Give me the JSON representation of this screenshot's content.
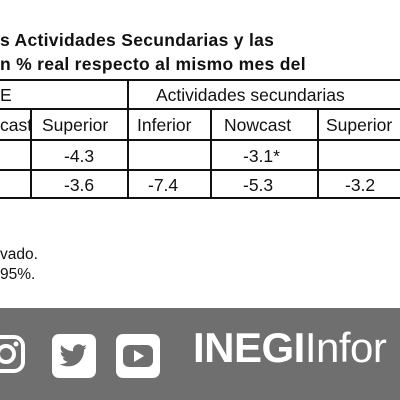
{
  "title": "s Actividades Secundarias y las",
  "subtitle": "n % real respecto al mismo mes del",
  "table": {
    "group_left_fragment": "E",
    "group_right": "Actividades secundarias",
    "col_headers": [
      "cast",
      "Superior",
      "Inferior",
      "Nowcast",
      "Superior"
    ],
    "rows": [
      [
        "",
        "-4.3",
        "",
        "-3.1*",
        ""
      ],
      [
        "",
        "-3.6",
        "-7.4",
        "-5.3",
        "-3.2"
      ]
    ]
  },
  "notes": [
    "vado.",
    " 95%."
  ],
  "footer": {
    "brand_bold": "INEGI",
    "brand_light": "Infor",
    "bg_color": "#6f6f6f",
    "icons": [
      "instagram-icon",
      "twitter-icon",
      "youtube-icon"
    ]
  }
}
